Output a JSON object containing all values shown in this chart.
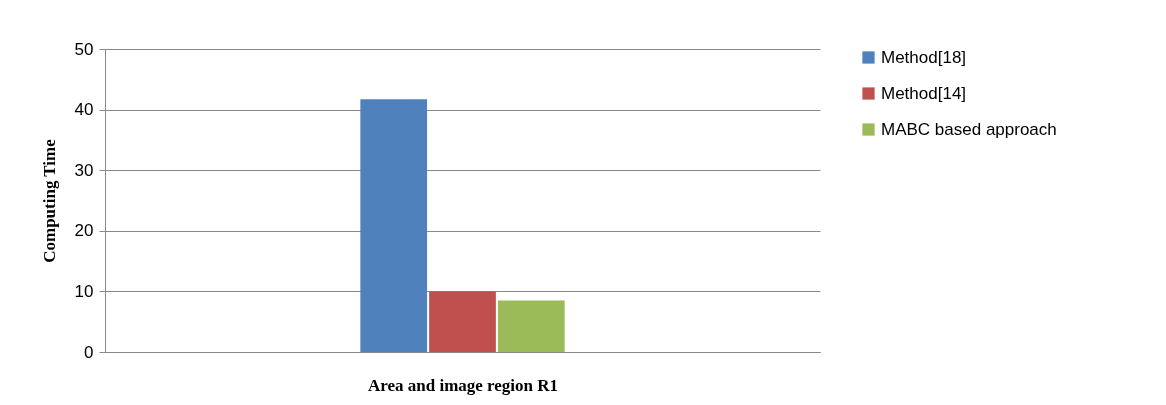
{
  "chart_data": {
    "type": "bar",
    "xlabel": "Area and image region R1",
    "ylabel": "Computing Time",
    "categories": [
      null
    ],
    "series": [
      {
        "name": "Method[18]",
        "color": "#4f81bd",
        "values": [
          41.7
        ]
      },
      {
        "name": "Method[14]",
        "color": "#c0504d",
        "values": [
          10
        ]
      },
      {
        "name": "MABC based approach",
        "color": "#9bbb59",
        "values": [
          8.5
        ]
      }
    ],
    "ylim": [
      0,
      50
    ],
    "yticks": [
      0,
      10,
      20,
      30,
      40,
      50
    ],
    "grid": "y",
    "legend": "right",
    "tick_labels": "y"
  }
}
